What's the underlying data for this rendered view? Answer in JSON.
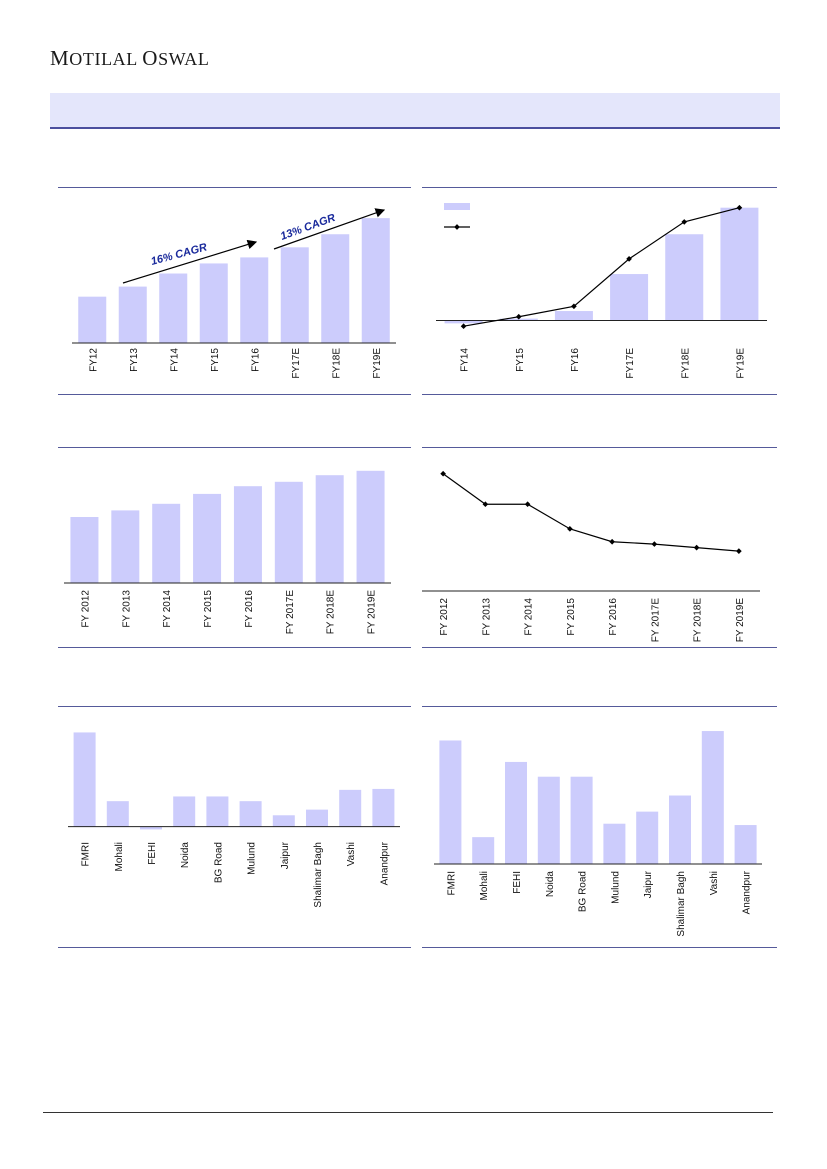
{
  "header": {
    "brand_first": "M",
    "brand_rest": "OTILAL ",
    "brand_first2": "O",
    "brand_rest2": "SWAL"
  },
  "colors": {
    "bar": "#ccccfc",
    "line": "#000000",
    "banner": "#e4e6fb",
    "rule": "#555a9a",
    "annotation": "#1a2a9c"
  },
  "chart_data": [
    {
      "id": "c1",
      "type": "bar",
      "categories": [
        "FY12",
        "FY13",
        "FY14",
        "FY15",
        "FY16",
        "FY17E",
        "FY18E",
        "FY19E"
      ],
      "values": [
        46,
        56,
        69,
        79,
        85,
        95,
        108,
        124
      ],
      "ylim": [
        0,
        140
      ],
      "annotations": [
        "16% CAGR",
        "13% CAGR"
      ]
    },
    {
      "id": "c2",
      "type": "bar+line",
      "categories": [
        "FY14",
        "FY15",
        "FY16",
        "FY17E",
        "FY18E",
        "FY19E"
      ],
      "bars": [
        -3,
        2,
        10,
        49,
        91,
        119
      ],
      "line": [
        -6,
        4,
        15,
        65,
        104,
        119
      ],
      "ylim": [
        -10,
        125
      ],
      "legend_placement": "top-left"
    },
    {
      "id": "c3",
      "type": "bar",
      "categories": [
        "FY 2012",
        "FY 2013",
        "FY 2014",
        "FY 2015",
        "FY 2016",
        "FY 2017E",
        "FY 2018E",
        "FY 2019E"
      ],
      "values": [
        60,
        66,
        72,
        81,
        88,
        92,
        98,
        102
      ],
      "ylim": [
        0,
        110
      ]
    },
    {
      "id": "c4",
      "type": "line",
      "categories": [
        "FY 2012",
        "FY 2013",
        "FY 2014",
        "FY 2015",
        "FY 2016",
        "FY 2017E",
        "FY 2018E",
        "FY 2019E"
      ],
      "values": [
        100,
        74,
        74,
        53,
        42,
        40,
        37,
        34
      ],
      "ylim": [
        0,
        110
      ]
    },
    {
      "id": "c5",
      "type": "bar",
      "categories": [
        "FMRI",
        "Mohali",
        "FEHI",
        "Noida",
        "BG Road",
        "Mulund",
        "Jaipur",
        "Shalimar Bagh",
        "Vashi",
        "Anandpur"
      ],
      "values": [
        100,
        27,
        -3,
        32,
        32,
        27,
        12,
        18,
        39,
        40
      ],
      "ylim": [
        -10,
        110
      ]
    },
    {
      "id": "c6",
      "type": "bar",
      "categories": [
        "FMRI",
        "Mohali",
        "FEHI",
        "Noida",
        "BG Road",
        "Mulund",
        "Jaipur",
        "Shalimar Bagh",
        "Vashi",
        "Anandpur"
      ],
      "values": [
        92,
        20,
        76,
        65,
        65,
        30,
        39,
        51,
        99,
        29
      ],
      "ylim": [
        0,
        105
      ]
    }
  ]
}
